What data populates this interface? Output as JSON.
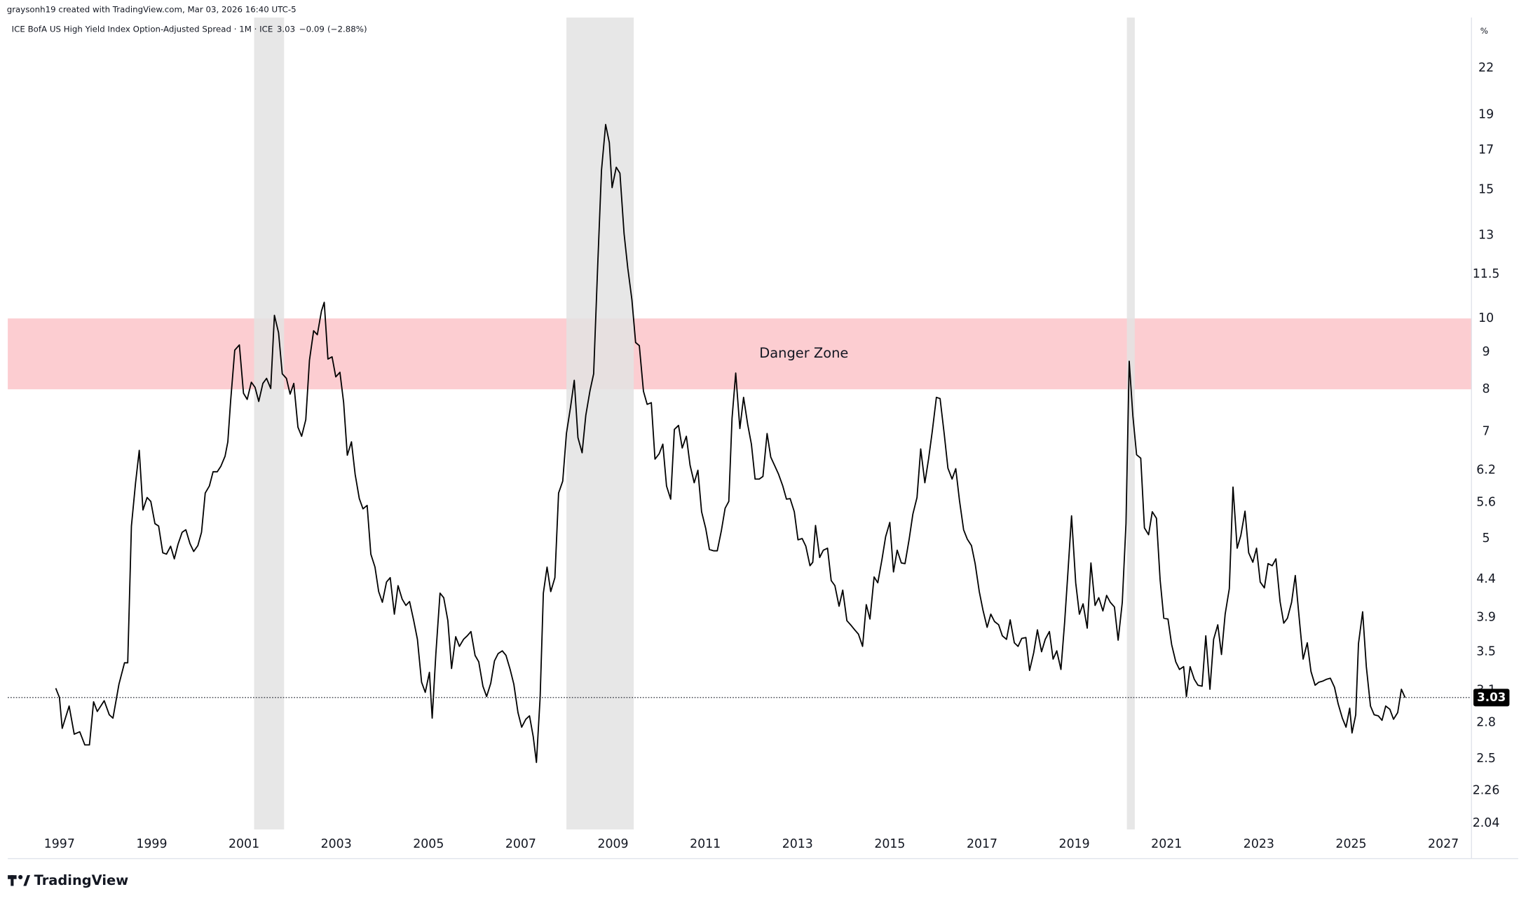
{
  "header": "graysonh19 created with TradingView.com, Mar 03, 2026 16:40 UTC-5",
  "brand": "TradingView",
  "chart_data": {
    "type": "line",
    "unit": "%",
    "log_scale": true,
    "grid": true,
    "last_value": 3.03,
    "change": {
      "value": -0.09,
      "label": "−0.09"
    },
    "change_percent": {
      "value": -2.88,
      "label": "(−2.88%)"
    },
    "bands": [
      {
        "label": "Danger Zone",
        "from": 8,
        "to": 10,
        "color": "#fccdd1"
      }
    ],
    "shaded_ranges": [
      {
        "from": 2001.22,
        "to": 2001.87
      },
      {
        "from": 2007.99,
        "to": 2009.45
      },
      {
        "from": 2020.14,
        "to": 2020.31
      }
    ],
    "shaded_color": "#e3e3e3",
    "xlim": [
      1995.88,
      2027.61
    ],
    "xticks": [
      1997,
      1999,
      2001,
      2003,
      2005,
      2007,
      2009,
      2011,
      2013,
      2015,
      2017,
      2019,
      2021,
      2023,
      2025,
      2027
    ],
    "ylim": [
      2.0,
      25.8
    ],
    "yticks": [
      2.04,
      2.26,
      2.5,
      2.8,
      3.1,
      3.5,
      3.9,
      4.4,
      5,
      5.6,
      6.2,
      7,
      8,
      9,
      10,
      11.5,
      13,
      15,
      17,
      19,
      22
    ],
    "series": [
      {
        "name": "ICE BofA US High Yield Index Option-Adjusted Spread · 1M · ICE",
        "color": "#000000",
        "x": [
          1996.92,
          1997.0,
          1997.06,
          1997.21,
          1997.32,
          1997.44,
          1997.55,
          1997.65,
          1997.74,
          1997.82,
          1997.97,
          1998.08,
          1998.16,
          1998.29,
          1998.41,
          1998.48,
          1998.56,
          1998.65,
          1998.73,
          1998.81,
          1998.9,
          1998.98,
          1999.07,
          1999.15,
          1999.24,
          1999.32,
          1999.41,
          1999.49,
          1999.57,
          1999.66,
          1999.74,
          1999.83,
          1999.91,
          2000.0,
          2000.08,
          2000.16,
          2000.25,
          2000.33,
          2000.42,
          2000.5,
          2000.59,
          2000.65,
          2000.71,
          2000.8,
          2000.9,
          2000.99,
          2001.07,
          2001.16,
          2001.24,
          2001.32,
          2001.41,
          2001.49,
          2001.58,
          2001.66,
          2001.75,
          2001.83,
          2001.92,
          2002.0,
          2002.08,
          2002.17,
          2002.25,
          2002.34,
          2002.42,
          2002.51,
          2002.59,
          2002.68,
          2002.74,
          2002.82,
          2002.91,
          2002.99,
          2003.08,
          2003.16,
          2003.24,
          2003.33,
          2003.41,
          2003.5,
          2003.58,
          2003.67,
          2003.75,
          2003.84,
          2003.92,
          2004.0,
          2004.09,
          2004.17,
          2004.26,
          2004.34,
          2004.43,
          2004.51,
          2004.59,
          2004.68,
          2004.76,
          2004.85,
          2004.93,
          2005.02,
          2005.08,
          2005.16,
          2005.25,
          2005.33,
          2005.42,
          2005.5,
          2005.59,
          2005.67,
          2005.76,
          2005.84,
          2005.92,
          2006.01,
          2006.09,
          2006.18,
          2006.26,
          2006.35,
          2006.43,
          2006.51,
          2006.6,
          2006.68,
          2006.77,
          2006.85,
          2006.94,
          2007.02,
          2007.11,
          2007.19,
          2007.27,
          2007.34,
          2007.42,
          2007.49,
          2007.57,
          2007.65,
          2007.74,
          2007.82,
          2007.91,
          2007.99,
          2008.08,
          2008.16,
          2008.24,
          2008.33,
          2008.41,
          2008.5,
          2008.58,
          2008.67,
          2008.75,
          2008.84,
          2008.92,
          2008.98,
          2009.07,
          2009.15,
          2009.24,
          2009.32,
          2009.41,
          2009.49,
          2009.57,
          2009.66,
          2009.74,
          2009.83,
          2009.91,
          2010.0,
          2010.08,
          2010.16,
          2010.25,
          2010.33,
          2010.42,
          2010.5,
          2010.59,
          2010.67,
          2010.76,
          2010.84,
          2010.92,
          2011.01,
          2011.09,
          2011.18,
          2011.26,
          2011.35,
          2011.43,
          2011.51,
          2011.58,
          2011.66,
          2011.75,
          2011.83,
          2011.92,
          2012.0,
          2012.08,
          2012.17,
          2012.25,
          2012.34,
          2012.42,
          2012.51,
          2012.59,
          2012.68,
          2012.76,
          2012.84,
          2012.93,
          2013.01,
          2013.1,
          2013.18,
          2013.27,
          2013.33,
          2013.39,
          2013.48,
          2013.56,
          2013.65,
          2013.73,
          2013.81,
          2013.9,
          2013.98,
          2014.07,
          2014.15,
          2014.24,
          2014.32,
          2014.41,
          2014.49,
          2014.57,
          2014.66,
          2014.74,
          2014.83,
          2014.91,
          2015.0,
          2015.08,
          2015.16,
          2015.25,
          2015.33,
          2015.42,
          2015.5,
          2015.59,
          2015.67,
          2015.76,
          2015.84,
          2015.92,
          2016.01,
          2016.09,
          2016.18,
          2016.26,
          2016.35,
          2016.43,
          2016.51,
          2016.6,
          2016.68,
          2016.77,
          2016.85,
          2016.94,
          2017.02,
          2017.11,
          2017.19,
          2017.27,
          2017.36,
          2017.44,
          2017.53,
          2017.61,
          2017.7,
          2017.78,
          2017.86,
          2017.95,
          2018.03,
          2018.12,
          2018.2,
          2018.29,
          2018.37,
          2018.46,
          2018.54,
          2018.62,
          2018.71,
          2018.79,
          2018.86,
          2018.94,
          2019.03,
          2019.11,
          2019.19,
          2019.28,
          2019.36,
          2019.45,
          2019.53,
          2019.62,
          2019.7,
          2019.78,
          2019.87,
          2019.95,
          2020.04,
          2020.12,
          2020.19,
          2020.27,
          2020.35,
          2020.44,
          2020.52,
          2020.61,
          2020.69,
          2020.78,
          2020.86,
          2020.94,
          2021.03,
          2021.11,
          2021.2,
          2021.28,
          2021.37,
          2021.43,
          2021.51,
          2021.6,
          2021.68,
          2021.77,
          2021.85,
          2021.94,
          2022.02,
          2022.11,
          2022.19,
          2022.27,
          2022.36,
          2022.44,
          2022.53,
          2022.61,
          2022.7,
          2022.78,
          2022.87,
          2022.95,
          2023.03,
          2023.12,
          2023.2,
          2023.29,
          2023.37,
          2023.46,
          2023.54,
          2023.62,
          2023.71,
          2023.79,
          2023.88,
          2023.96,
          2024.05,
          2024.13,
          2024.22,
          2024.3,
          2024.38,
          2024.47,
          2024.55,
          2024.64,
          2024.72,
          2024.81,
          2024.89,
          2024.97,
          2025.02,
          2025.1,
          2025.16,
          2025.25,
          2025.33,
          2025.42,
          2025.5,
          2025.59,
          2025.67,
          2025.75,
          2025.84,
          2025.92,
          2026.01,
          2026.09,
          2026.17
        ],
        "values": [
          3.12,
          3.03,
          2.75,
          2.95,
          2.7,
          2.72,
          2.61,
          2.61,
          2.99,
          2.9,
          3.0,
          2.87,
          2.84,
          3.16,
          3.38,
          3.38,
          5.2,
          5.96,
          6.6,
          5.47,
          5.69,
          5.62,
          5.24,
          5.2,
          4.78,
          4.76,
          4.88,
          4.69,
          4.91,
          5.1,
          5.14,
          4.92,
          4.8,
          4.89,
          5.1,
          5.77,
          5.9,
          6.17,
          6.17,
          6.28,
          6.48,
          6.78,
          7.7,
          9.05,
          9.2,
          7.9,
          7.75,
          8.18,
          8.05,
          7.7,
          8.15,
          8.28,
          8.02,
          10.1,
          9.56,
          8.4,
          8.28,
          7.88,
          8.15,
          7.1,
          6.9,
          7.27,
          8.77,
          9.62,
          9.5,
          10.24,
          10.52,
          8.8,
          8.86,
          8.32,
          8.44,
          7.68,
          6.5,
          6.78,
          6.12,
          5.67,
          5.49,
          5.55,
          4.76,
          4.57,
          4.23,
          4.09,
          4.36,
          4.42,
          3.94,
          4.31,
          4.13,
          4.05,
          4.1,
          3.86,
          3.64,
          3.18,
          3.08,
          3.28,
          2.84,
          3.48,
          4.21,
          4.15,
          3.86,
          3.32,
          3.67,
          3.56,
          3.64,
          3.68,
          3.73,
          3.46,
          3.39,
          3.14,
          3.04,
          3.17,
          3.4,
          3.48,
          3.51,
          3.46,
          3.31,
          3.16,
          2.89,
          2.76,
          2.83,
          2.86,
          2.68,
          2.47,
          3.03,
          4.21,
          4.57,
          4.23,
          4.42,
          5.77,
          5.99,
          6.96,
          7.57,
          8.23,
          6.87,
          6.55,
          7.37,
          7.96,
          8.4,
          11.9,
          15.94,
          18.42,
          17.4,
          15.1,
          16.1,
          15.8,
          13.06,
          11.72,
          10.6,
          9.27,
          9.18,
          7.95,
          7.63,
          7.67,
          6.42,
          6.53,
          6.73,
          5.9,
          5.66,
          7.05,
          7.14,
          6.65,
          6.9,
          6.3,
          5.96,
          6.2,
          5.44,
          5.16,
          4.83,
          4.81,
          4.81,
          5.13,
          5.5,
          5.62,
          7.3,
          8.42,
          7.07,
          7.8,
          7.16,
          6.73,
          6.03,
          6.03,
          6.08,
          6.96,
          6.46,
          6.28,
          6.12,
          5.9,
          5.66,
          5.67,
          5.44,
          4.98,
          5.0,
          4.88,
          4.59,
          4.64,
          5.21,
          4.71,
          4.82,
          4.85,
          4.38,
          4.31,
          4.04,
          4.25,
          3.86,
          3.81,
          3.75,
          3.7,
          3.56,
          4.06,
          3.88,
          4.43,
          4.35,
          4.68,
          5.03,
          5.26,
          4.5,
          4.82,
          4.63,
          4.62,
          4.99,
          5.4,
          5.69,
          6.63,
          5.96,
          6.42,
          7.0,
          7.8,
          7.77,
          6.95,
          6.24,
          6.03,
          6.23,
          5.64,
          5.14,
          4.99,
          4.89,
          4.62,
          4.23,
          3.99,
          3.78,
          3.94,
          3.85,
          3.81,
          3.68,
          3.64,
          3.87,
          3.6,
          3.56,
          3.65,
          3.66,
          3.3,
          3.49,
          3.75,
          3.5,
          3.64,
          3.73,
          3.42,
          3.51,
          3.31,
          3.84,
          4.48,
          5.37,
          4.35,
          3.94,
          4.07,
          3.77,
          4.63,
          4.05,
          4.15,
          3.98,
          4.18,
          4.09,
          4.03,
          3.63,
          4.09,
          5.24,
          8.74,
          7.35,
          6.51,
          6.44,
          5.17,
          5.06,
          5.44,
          5.33,
          4.39,
          3.89,
          3.88,
          3.58,
          3.39,
          3.31,
          3.34,
          3.04,
          3.34,
          3.21,
          3.15,
          3.14,
          3.68,
          3.11,
          3.64,
          3.81,
          3.47,
          3.94,
          4.27,
          5.88,
          4.85,
          5.05,
          5.45,
          4.78,
          4.64,
          4.85,
          4.36,
          4.28,
          4.62,
          4.59,
          4.69,
          4.1,
          3.83,
          3.89,
          4.09,
          4.45,
          3.86,
          3.42,
          3.6,
          3.29,
          3.15,
          3.18,
          3.19,
          3.21,
          3.22,
          3.13,
          2.97,
          2.84,
          2.76,
          2.93,
          2.71,
          2.87,
          3.59,
          3.97,
          3.34,
          2.95,
          2.87,
          2.86,
          2.82,
          2.95,
          2.92,
          2.83,
          2.89,
          3.11,
          3.03
        ]
      }
    ]
  }
}
